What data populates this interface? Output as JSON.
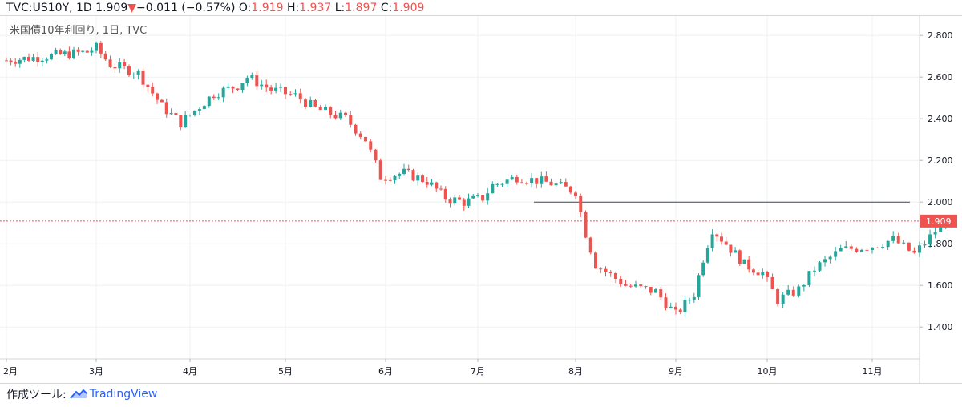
{
  "header": {
    "symbol": "TVC:US10Y, 1D",
    "last": "1.909",
    "arrow": "▼",
    "change": "−0.011 (−0.57%)",
    "o_label": "O:",
    "o": "1.919",
    "h_label": "H:",
    "h": "1.937",
    "l_label": "L:",
    "l": "1.897",
    "c_label": "C:",
    "c": "1.909"
  },
  "legend_text": "米国債10年利回り, 1日, TVC",
  "footer": {
    "prefix": "作成ツール:",
    "brand": "TradingView",
    "brand_icon": "tradingview-logo-icon"
  },
  "colors": {
    "up": "#26a69a",
    "down": "#ef5350",
    "grid": "#eef0f3",
    "last_price": "#ef5350",
    "brand": "#2962ff"
  },
  "chart_data": {
    "type": "candlestick",
    "ylim": [
      1.35,
      2.87
    ],
    "y_ticks": [
      "2.800",
      "2.600",
      "2.400",
      "2.200",
      "2.000",
      "1.800",
      "1.600",
      "1.400"
    ],
    "x_months": [
      "2月",
      "3月",
      "4月",
      "5月",
      "6月",
      "7月",
      "8月",
      "9月",
      "10月",
      "11月"
    ],
    "last_price_label": "1.909",
    "resistance_level": 2.0,
    "monthly_anchors": [
      {
        "month": "2月",
        "price": 2.7
      },
      {
        "month": "3月",
        "price": 2.72
      },
      {
        "month": "4月",
        "price": 2.4
      },
      {
        "month": "5月",
        "price": 2.52
      },
      {
        "month": "6月",
        "price": 2.1
      },
      {
        "month": "7月",
        "price": 2.0
      },
      {
        "month": "8月",
        "price": 1.9
      },
      {
        "month": "9月",
        "price": 1.47
      },
      {
        "month": "10月",
        "price": 1.62
      },
      {
        "month": "11月",
        "price": 1.82
      }
    ],
    "path_points": [
      [
        0.0,
        2.68
      ],
      [
        0.9,
        2.72
      ],
      [
        1.0,
        2.74
      ],
      [
        1.15,
        2.66
      ],
      [
        1.45,
        2.62
      ],
      [
        1.7,
        2.46
      ],
      [
        1.9,
        2.38
      ],
      [
        2.05,
        2.44
      ],
      [
        2.25,
        2.52
      ],
      [
        2.5,
        2.56
      ],
      [
        2.6,
        2.6
      ],
      [
        2.85,
        2.54
      ],
      [
        3.1,
        2.51
      ],
      [
        3.3,
        2.45
      ],
      [
        3.6,
        2.4
      ],
      [
        3.8,
        2.3
      ],
      [
        3.95,
        2.12
      ],
      [
        4.2,
        2.14
      ],
      [
        4.45,
        2.1
      ],
      [
        4.65,
        2.02
      ],
      [
        4.85,
        2.0
      ],
      [
        5.05,
        2.02
      ],
      [
        5.15,
        2.08
      ],
      [
        5.4,
        2.12
      ],
      [
        5.75,
        2.09
      ],
      [
        6.0,
        2.05
      ],
      [
        6.1,
        1.85
      ],
      [
        6.2,
        1.7
      ],
      [
        6.5,
        1.6
      ],
      [
        6.8,
        1.57
      ],
      [
        7.0,
        1.46
      ],
      [
        7.2,
        1.56
      ],
      [
        7.3,
        1.73
      ],
      [
        7.4,
        1.87
      ],
      [
        7.55,
        1.8
      ],
      [
        7.75,
        1.7
      ],
      [
        7.95,
        1.66
      ],
      [
        8.1,
        1.53
      ],
      [
        8.3,
        1.58
      ],
      [
        8.45,
        1.68
      ],
      [
        8.7,
        1.77
      ],
      [
        9.0,
        1.79
      ],
      [
        9.2,
        1.82
      ],
      [
        9.4,
        1.75
      ],
      [
        9.6,
        1.86
      ],
      [
        9.7,
        1.909
      ]
    ]
  }
}
